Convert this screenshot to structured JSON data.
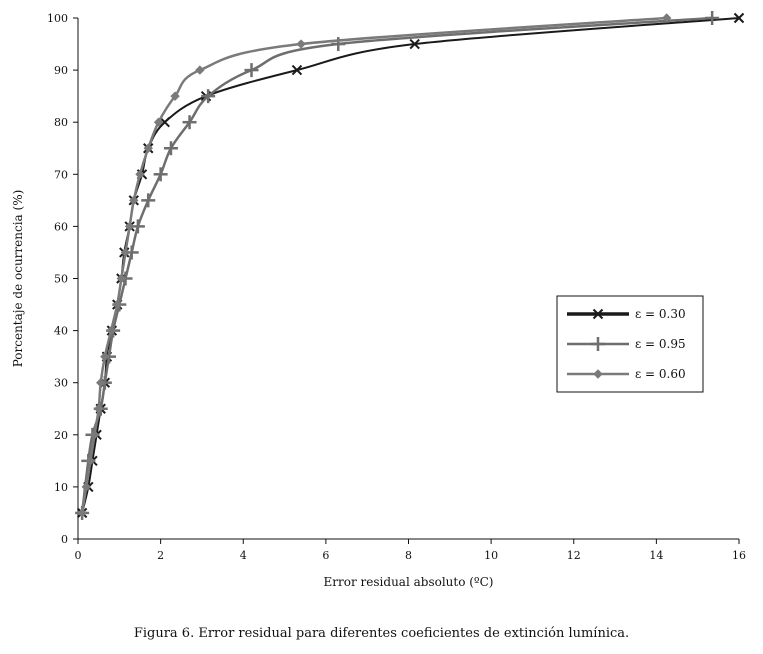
{
  "caption": "Figura 6. Error residual para diferentes coeficientes de extinción lumínica.",
  "chart_data": {
    "type": "line",
    "xlabel": "Error residual absoluto (ºC)",
    "ylabel": "Porcentaje de ocurrencia (%)",
    "xlim": [
      0,
      16
    ],
    "ylim": [
      0,
      100
    ],
    "xticks": [
      0,
      2,
      4,
      6,
      8,
      10,
      12,
      14,
      16
    ],
    "yticks": [
      0,
      10,
      20,
      30,
      40,
      50,
      60,
      70,
      80,
      90,
      100
    ],
    "grid": false,
    "legend_position": "middle-right",
    "series": [
      {
        "name": "ε = 0.30",
        "color": "#1a1a1a",
        "marker": "x",
        "points": [
          {
            "x": 0.1,
            "y": 5
          },
          {
            "x": 0.25,
            "y": 10
          },
          {
            "x": 0.35,
            "y": 15
          },
          {
            "x": 0.45,
            "y": 20
          },
          {
            "x": 0.55,
            "y": 25
          },
          {
            "x": 0.65,
            "y": 30
          },
          {
            "x": 0.7,
            "y": 35
          },
          {
            "x": 0.82,
            "y": 40
          },
          {
            "x": 0.95,
            "y": 45
          },
          {
            "x": 1.05,
            "y": 50
          },
          {
            "x": 1.12,
            "y": 55
          },
          {
            "x": 1.25,
            "y": 60
          },
          {
            "x": 1.35,
            "y": 65
          },
          {
            "x": 1.55,
            "y": 70
          },
          {
            "x": 1.7,
            "y": 75
          },
          {
            "x": 2.1,
            "y": 80
          },
          {
            "x": 3.1,
            "y": 85
          },
          {
            "x": 5.3,
            "y": 90
          },
          {
            "x": 8.15,
            "y": 95
          },
          {
            "x": 16.0,
            "y": 100
          }
        ]
      },
      {
        "name": "ε = 0.95",
        "color": "#6e6e6e",
        "marker": "+",
        "points": [
          {
            "x": 0.1,
            "y": 5
          },
          {
            "x": 0.25,
            "y": 15
          },
          {
            "x": 0.35,
            "y": 20
          },
          {
            "x": 0.55,
            "y": 25
          },
          {
            "x": 0.65,
            "y": 30
          },
          {
            "x": 0.75,
            "y": 35
          },
          {
            "x": 0.85,
            "y": 40
          },
          {
            "x": 1.0,
            "y": 45
          },
          {
            "x": 1.15,
            "y": 50
          },
          {
            "x": 1.3,
            "y": 55
          },
          {
            "x": 1.45,
            "y": 60
          },
          {
            "x": 1.7,
            "y": 65
          },
          {
            "x": 2.0,
            "y": 70
          },
          {
            "x": 2.25,
            "y": 75
          },
          {
            "x": 2.7,
            "y": 80
          },
          {
            "x": 3.15,
            "y": 85
          },
          {
            "x": 4.2,
            "y": 90
          },
          {
            "x": 6.3,
            "y": 95
          },
          {
            "x": 15.35,
            "y": 100
          }
        ]
      },
      {
        "name": "ε = 0.60",
        "color": "#7a7a7a",
        "marker": "diamond",
        "points": [
          {
            "x": 0.1,
            "y": 5
          },
          {
            "x": 0.2,
            "y": 10
          },
          {
            "x": 0.3,
            "y": 15
          },
          {
            "x": 0.4,
            "y": 20
          },
          {
            "x": 0.5,
            "y": 25
          },
          {
            "x": 0.55,
            "y": 30
          },
          {
            "x": 0.65,
            "y": 35
          },
          {
            "x": 0.8,
            "y": 40
          },
          {
            "x": 0.95,
            "y": 45
          },
          {
            "x": 1.05,
            "y": 50
          },
          {
            "x": 1.15,
            "y": 55
          },
          {
            "x": 1.25,
            "y": 60
          },
          {
            "x": 1.35,
            "y": 65
          },
          {
            "x": 1.5,
            "y": 70
          },
          {
            "x": 1.7,
            "y": 75
          },
          {
            "x": 1.95,
            "y": 80
          },
          {
            "x": 2.35,
            "y": 85
          },
          {
            "x": 2.95,
            "y": 90
          },
          {
            "x": 5.4,
            "y": 95
          },
          {
            "x": 14.25,
            "y": 100
          }
        ]
      }
    ]
  }
}
